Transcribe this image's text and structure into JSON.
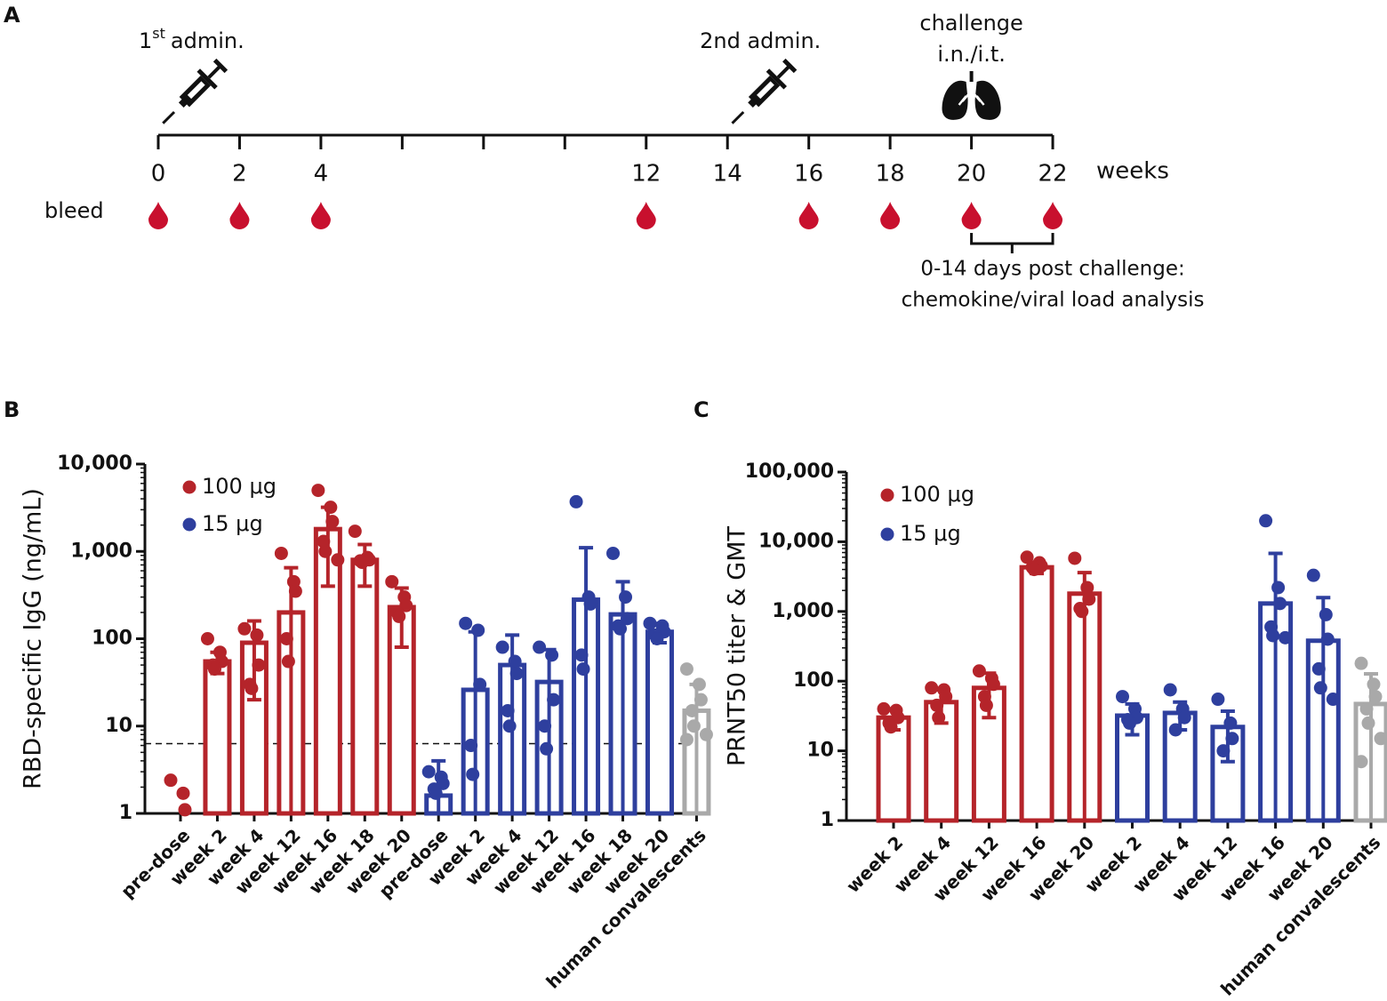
{
  "panel_labels": [
    "A",
    "B",
    "C"
  ],
  "timeline": {
    "unit": "weeks",
    "ticks": [
      0,
      2,
      4,
      6,
      8,
      10,
      12,
      14,
      16,
      18,
      20,
      22
    ],
    "labeled_ticks": [
      0,
      2,
      4,
      12,
      14,
      16,
      18,
      20,
      22
    ],
    "bleed_label": "bleed",
    "bleed_weeks": [
      0,
      2,
      4,
      12,
      16,
      18,
      20,
      22
    ],
    "first_admin": {
      "week": 0,
      "number": "1",
      "superscript": "st",
      "label": "admin."
    },
    "second_admin": {
      "week": 14,
      "label": "2nd admin."
    },
    "challenge": {
      "week": 20,
      "lines": [
        "challenge",
        "i.n./i.t."
      ]
    },
    "analysis": {
      "from": 20,
      "to": 22,
      "lines": [
        "0-14 days post challenge:",
        "chemokine/viral load analysis"
      ]
    }
  },
  "chart_data": [
    {
      "type": "bar",
      "y_label": "RBD-specific IgG (ng/mL)",
      "log_y": true,
      "ylim": [
        1,
        10000
      ],
      "yticks": [
        1,
        10,
        100,
        {
          "value": 1000,
          "label": "1,000"
        },
        {
          "value": 10000,
          "label": "10,000"
        }
      ],
      "reference_line": 6.3,
      "legend": "upper left",
      "categories": [
        "pre-dose",
        "week 2",
        "week 4",
        "week 12",
        "week 16",
        "week 18",
        "week 20",
        "pre-dose",
        "week 2",
        "week 4",
        "week 12",
        "week 16",
        "week 18",
        "week 20",
        "human convalescents"
      ],
      "series": [
        {
          "name": "100 μg",
          "color": "#b5242a",
          "values": [
            null,
            55,
            90,
            200,
            1800,
            800,
            230,
            null,
            null,
            null,
            null,
            null,
            null,
            null,
            null
          ],
          "errors": [
            null,
            15,
            70,
            450,
            1400,
            400,
            150,
            null,
            null,
            null,
            null,
            null,
            null,
            null,
            null
          ],
          "points": [
            [
              2.4,
              1.7,
              1.1
            ],
            [
              100,
              70,
              55,
              50,
              45
            ],
            [
              130,
              110,
              50,
              30,
              27
            ],
            [
              950,
              450,
              350,
              100,
              55
            ],
            [
              5000,
              3200,
              2200,
              1300,
              1000,
              800
            ],
            [
              1700,
              850,
              800,
              780,
              750
            ],
            [
              450,
              300,
              240,
              200,
              180
            ],
            null,
            null,
            null,
            null,
            null,
            null,
            null,
            null
          ]
        },
        {
          "name": "15 μg",
          "color": "#2e3f9e",
          "values": [
            null,
            null,
            null,
            null,
            null,
            null,
            null,
            1.6,
            26,
            50,
            32,
            280,
            190,
            120,
            null
          ],
          "errors": [
            null,
            null,
            null,
            null,
            null,
            null,
            null,
            2.4,
            94,
            60,
            43,
            820,
            260,
            30,
            null
          ],
          "points": [
            null,
            null,
            null,
            null,
            null,
            null,
            null,
            [
              3,
              2.6,
              2.2,
              1.9,
              1.7
            ],
            [
              150,
              125,
              30,
              6,
              2.8
            ],
            [
              80,
              55,
              40,
              15,
              10
            ],
            [
              80,
              65,
              20,
              10,
              5.5
            ],
            [
              3700,
              300,
              250,
              65,
              45
            ],
            [
              950,
              300,
              170,
              140,
              130
            ],
            [
              150,
              140,
              120,
              110,
              100
            ],
            null
          ]
        },
        {
          "color": "#a9a9a9",
          "values": [
            null,
            null,
            null,
            null,
            null,
            null,
            null,
            null,
            null,
            null,
            null,
            null,
            null,
            null,
            15
          ],
          "errors": [
            null,
            null,
            null,
            null,
            null,
            null,
            null,
            null,
            null,
            null,
            null,
            null,
            null,
            null,
            15
          ],
          "points": [
            null,
            null,
            null,
            null,
            null,
            null,
            null,
            null,
            null,
            null,
            null,
            null,
            null,
            null,
            [
              45,
              30,
              20,
              15,
              10,
              8,
              7
            ]
          ]
        }
      ]
    },
    {
      "type": "bar",
      "y_label": "PRNT50 titer & GMT",
      "log_y": true,
      "ylim": [
        1,
        100000
      ],
      "yticks": [
        1,
        10,
        100,
        {
          "value": 1000,
          "label": "1,000"
        },
        {
          "value": 10000,
          "label": "10,000"
        },
        {
          "value": 100000,
          "label": "100,000"
        }
      ],
      "legend": "upper left",
      "categories": [
        "week 2",
        "week 4",
        "week 12",
        "week 16",
        "week 20",
        "week 2",
        "week 4",
        "week 12",
        "week 16",
        "week 20",
        "human convalescents"
      ],
      "series": [
        {
          "name": "100 μg",
          "color": "#b5242a",
          "values": [
            30,
            50,
            80,
            4300,
            1800,
            null,
            null,
            null,
            null,
            null,
            null
          ],
          "errors": [
            10,
            25,
            50,
            800,
            1800,
            null,
            null,
            null,
            null,
            null,
            null
          ],
          "points": [
            [
              40,
              38,
              30,
              25,
              22
            ],
            [
              80,
              75,
              60,
              45,
              30
            ],
            [
              140,
              110,
              90,
              60,
              45
            ],
            [
              6000,
              5000,
              4500,
              4300,
              4000
            ],
            [
              5800,
              2200,
              1500,
              1100,
              1000
            ],
            null,
            null,
            null,
            null,
            null,
            null
          ]
        },
        {
          "name": "15 μg",
          "color": "#2e3f9e",
          "values": [
            null,
            null,
            null,
            null,
            null,
            32,
            35,
            22,
            1300,
            380,
            null
          ],
          "errors": [
            null,
            null,
            null,
            null,
            null,
            15,
            15,
            15,
            5500,
            1200,
            null
          ],
          "points": [
            null,
            null,
            null,
            null,
            null,
            [
              60,
              40,
              30,
              28,
              25
            ],
            [
              75,
              40,
              30,
              20
            ],
            [
              55,
              25,
              15,
              10
            ],
            [
              20000,
              2200,
              1300,
              600,
              450,
              420
            ],
            [
              3300,
              900,
              400,
              150,
              80,
              55
            ],
            null
          ]
        },
        {
          "color": "#a9a9a9",
          "values": [
            null,
            null,
            null,
            null,
            null,
            null,
            null,
            null,
            null,
            null,
            47
          ],
          "errors": [
            null,
            null,
            null,
            null,
            null,
            null,
            null,
            null,
            null,
            null,
            80
          ],
          "points": [
            null,
            null,
            null,
            null,
            null,
            null,
            null,
            null,
            null,
            null,
            [
              180,
              90,
              60,
              40,
              25,
              15,
              7
            ]
          ]
        }
      ]
    }
  ]
}
